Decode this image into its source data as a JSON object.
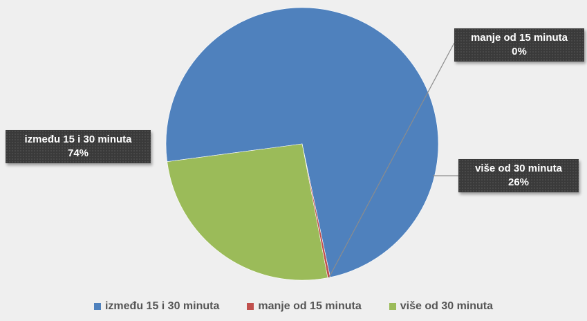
{
  "chart_data": {
    "type": "pie",
    "categories": [
      "između 15 i 30 minuta",
      "manje od 15 minuta",
      "više od 30 minuta"
    ],
    "values": [
      74,
      0.3,
      26
    ],
    "display_labels": [
      "74%",
      "0%",
      "26%"
    ],
    "colors": [
      "#4f81bd",
      "#c0504d",
      "#9bbb59"
    ],
    "legend_position": "bottom",
    "title": ""
  }
}
